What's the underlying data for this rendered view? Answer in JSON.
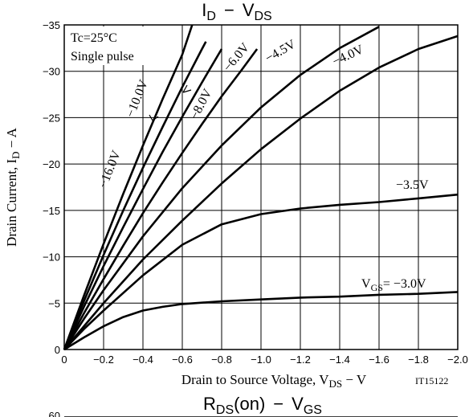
{
  "chart_data": [
    {
      "type": "line",
      "title": "ID − VDS",
      "title_parts": {
        "main": "I",
        "sub": "D",
        "dash": "−",
        "main2": "V",
        "sub2": "DS"
      },
      "xlabel": "Drain to Source Voltage, VDS − V",
      "xlabel_parts": {
        "pre": "Drain to Source Voltage, V",
        "sub": "DS",
        "post": " − V"
      },
      "ylabel": "Drain Current, ID − A",
      "ylabel_parts": {
        "pre": "Drain Current, I",
        "sub": "D",
        "post": " − A"
      },
      "xlim": [
        0,
        -2.0
      ],
      "ylim": [
        0,
        -35
      ],
      "x_ticks": [
        0,
        -0.2,
        -0.4,
        -0.6,
        -0.8,
        -1.0,
        -1.2,
        -1.4,
        -1.6,
        -1.8,
        -2.0
      ],
      "x_tick_labels": [
        "0",
        "−0.2",
        "−0.4",
        "−0.6",
        "−0.8",
        "−1.0",
        "−1.2",
        "−1.4",
        "−1.6",
        "−1.8",
        "−2.0"
      ],
      "y_ticks": [
        0,
        -5,
        -10,
        -15,
        -20,
        -25,
        -30,
        -35
      ],
      "y_tick_labels": [
        "0",
        "−5",
        "−10",
        "−15",
        "−20",
        "−25",
        "−30",
        "−35"
      ],
      "grid": true,
      "conditions": [
        "Tc=25°C",
        "Single pulse"
      ],
      "figure_code": "IT15122",
      "series": [
        {
          "name": "−16.0V",
          "x": [
            0,
            -0.1,
            -0.2,
            -0.3,
            -0.4,
            -0.5,
            -0.6,
            -0.65
          ],
          "y": [
            0,
            -5.8,
            -11.4,
            -16.8,
            -22.0,
            -27.0,
            -31.8,
            -35
          ]
        },
        {
          "name": "−10.0V",
          "x": [
            0,
            -0.1,
            -0.2,
            -0.3,
            -0.4,
            -0.5,
            -0.6,
            -0.7,
            -0.72
          ],
          "y": [
            0,
            -5.2,
            -10.2,
            -15.0,
            -19.6,
            -24.0,
            -28.3,
            -32.4,
            -33.2
          ]
        },
        {
          "name": "−8.0V",
          "x": [
            0,
            -0.1,
            -0.2,
            -0.3,
            -0.4,
            -0.5,
            -0.6,
            -0.7,
            -0.8
          ],
          "y": [
            0,
            -4.6,
            -9.0,
            -13.2,
            -17.3,
            -21.3,
            -25.1,
            -28.8,
            -32.4
          ]
        },
        {
          "name": "−6.0V",
          "x": [
            0,
            -0.1,
            -0.2,
            -0.3,
            -0.4,
            -0.5,
            -0.6,
            -0.7,
            -0.8,
            -0.9,
            -0.98
          ],
          "y": [
            0,
            -3.9,
            -7.6,
            -11.2,
            -14.7,
            -18.0,
            -21.2,
            -24.3,
            -27.3,
            -30.1,
            -32.4
          ]
        },
        {
          "name": "−4.5V",
          "x": [
            0,
            -0.1,
            -0.2,
            -0.4,
            -0.6,
            -0.8,
            -1.0,
            -1.2,
            -1.4,
            -1.6
          ],
          "y": [
            0,
            -3.3,
            -6.4,
            -12.2,
            -17.4,
            -22.0,
            -26.1,
            -29.6,
            -32.5,
            -34.8
          ]
        },
        {
          "name": "−4.0V",
          "x": [
            0,
            -0.1,
            -0.2,
            -0.4,
            -0.6,
            -0.8,
            -1.0,
            -1.2,
            -1.4,
            -1.6,
            -1.8,
            -2.0
          ],
          "y": [
            0,
            -2.5,
            -5.0,
            -9.7,
            -13.9,
            -17.9,
            -21.6,
            -24.9,
            -27.9,
            -30.4,
            -32.4,
            -33.8
          ]
        },
        {
          "name": "−3.5V",
          "x": [
            0,
            -0.1,
            -0.2,
            -0.4,
            -0.6,
            -0.8,
            -1.0,
            -1.2,
            -1.4,
            -1.6,
            -1.8,
            -2.0
          ],
          "y": [
            0,
            -2.2,
            -4.2,
            -8.0,
            -11.3,
            -13.5,
            -14.6,
            -15.2,
            -15.6,
            -15.9,
            -16.3,
            -16.7
          ]
        },
        {
          "name": "VGS= −3.0V",
          "x": [
            0,
            -0.1,
            -0.2,
            -0.3,
            -0.4,
            -0.5,
            -0.6,
            -0.8,
            -1.0,
            -1.2,
            -1.4,
            -1.6,
            -1.8,
            -2.0
          ],
          "y": [
            0,
            -1.3,
            -2.5,
            -3.5,
            -4.2,
            -4.6,
            -4.9,
            -5.2,
            -5.4,
            -5.6,
            -5.7,
            -5.9,
            -6.0,
            -6.2
          ]
        }
      ]
    },
    {
      "type": "line",
      "title": "RDS(on) − VGS",
      "title_parts": {
        "main": "R",
        "sub": "DS",
        "post": "(on)",
        "dash": "−",
        "main2": "V",
        "sub2": "GS"
      },
      "y_tick_labels": [
        "60"
      ],
      "partial": true
    }
  ]
}
